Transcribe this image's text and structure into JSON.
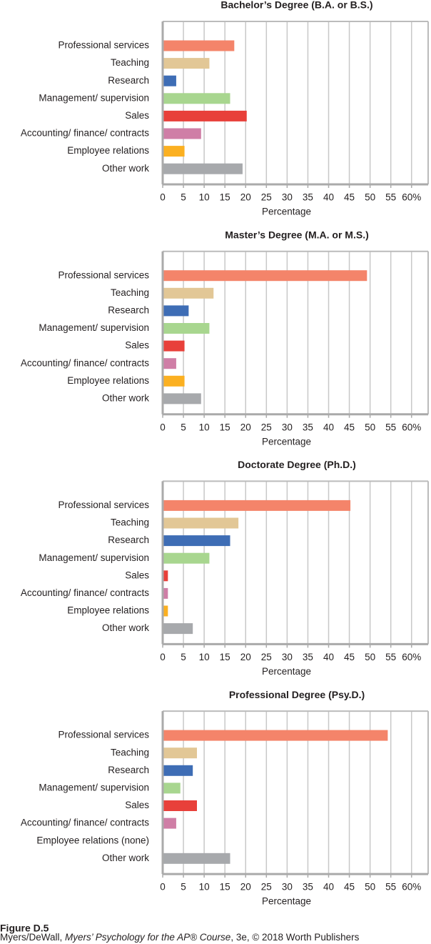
{
  "chart_data": [
    {
      "type": "bar",
      "orientation": "horizontal",
      "title": "Bachelor’s Degree (B.A. or B.S.)",
      "categories": [
        "Professional services",
        "Teaching",
        "Research",
        "Management/ supervision",
        "Sales",
        "Accounting/ finance/ contracts",
        "Employee relations",
        "Other work"
      ],
      "values": [
        17,
        11,
        3,
        16,
        20,
        9,
        5,
        19
      ],
      "colors": [
        "#f4846a",
        "#e2c796",
        "#3e6db5",
        "#a8d68f",
        "#e8403a",
        "#cf7ea6",
        "#fbb021",
        "#a7a9ac"
      ],
      "xlabel": "Percentage",
      "xlim": [
        0,
        64
      ],
      "xticks": [
        0,
        5,
        10,
        15,
        20,
        25,
        30,
        35,
        40,
        45,
        50,
        55,
        {
          "value": 60,
          "label": "60%"
        }
      ],
      "grid": true
    },
    {
      "type": "bar",
      "orientation": "horizontal",
      "title": "Master’s Degree (M.A. or M.S.)",
      "categories": [
        "Professional services",
        "Teaching",
        "Research",
        "Management/ supervision",
        "Sales",
        "Accounting/ finance/ contracts",
        "Employee relations",
        "Other work"
      ],
      "values": [
        49,
        12,
        6,
        11,
        5,
        3,
        5,
        9
      ],
      "colors": [
        "#f4846a",
        "#e2c796",
        "#3e6db5",
        "#a8d68f",
        "#e8403a",
        "#cf7ea6",
        "#fbb021",
        "#a7a9ac"
      ],
      "xlabel": "Percentage",
      "xlim": [
        0,
        64
      ],
      "xticks": [
        0,
        5,
        10,
        15,
        20,
        25,
        30,
        35,
        40,
        45,
        50,
        55,
        {
          "value": 60,
          "label": "60%"
        }
      ],
      "grid": true
    },
    {
      "type": "bar",
      "orientation": "horizontal",
      "title": "Doctorate Degree (Ph.D.)",
      "categories": [
        "Professional services",
        "Teaching",
        "Research",
        "Management/ supervision",
        "Sales",
        "Accounting/ finance/ contracts",
        "Employee relations",
        "Other work"
      ],
      "values": [
        45,
        18,
        16,
        11,
        1,
        1,
        1,
        7
      ],
      "colors": [
        "#f4846a",
        "#e2c796",
        "#3e6db5",
        "#a8d68f",
        "#e8403a",
        "#cf7ea6",
        "#fbb021",
        "#a7a9ac"
      ],
      "xlabel": "Percentage",
      "xlim": [
        0,
        64
      ],
      "xticks": [
        0,
        5,
        10,
        15,
        20,
        25,
        30,
        35,
        40,
        45,
        50,
        55,
        {
          "value": 60,
          "label": "60%"
        }
      ],
      "grid": true
    },
    {
      "type": "bar",
      "orientation": "horizontal",
      "title": "Professional Degree (Psy.D.)",
      "categories": [
        "Professional services",
        "Teaching",
        "Research",
        "Management/ supervision",
        "Sales",
        "Accounting/ finance/ contracts",
        "Employee relations (none)",
        "Other work"
      ],
      "values": [
        54,
        8,
        7,
        4,
        8,
        3,
        0,
        16
      ],
      "colors": [
        "#f4846a",
        "#e2c796",
        "#3e6db5",
        "#a8d68f",
        "#e8403a",
        "#cf7ea6",
        "#fbb021",
        "#a7a9ac"
      ],
      "xlabel": "Percentage",
      "xlim": [
        0,
        64
      ],
      "xticks": [
        0,
        5,
        10,
        15,
        20,
        25,
        30,
        35,
        40,
        45,
        50,
        55,
        {
          "value": 60,
          "label": "60%"
        }
      ],
      "grid": true
    }
  ],
  "figure": {
    "label": "Figure D.5",
    "credit": [
      "Myers/DeWall, ",
      "Myers’ Psychology for the AP® Course",
      ", 3e, © 2018 Worth Publishers"
    ]
  }
}
